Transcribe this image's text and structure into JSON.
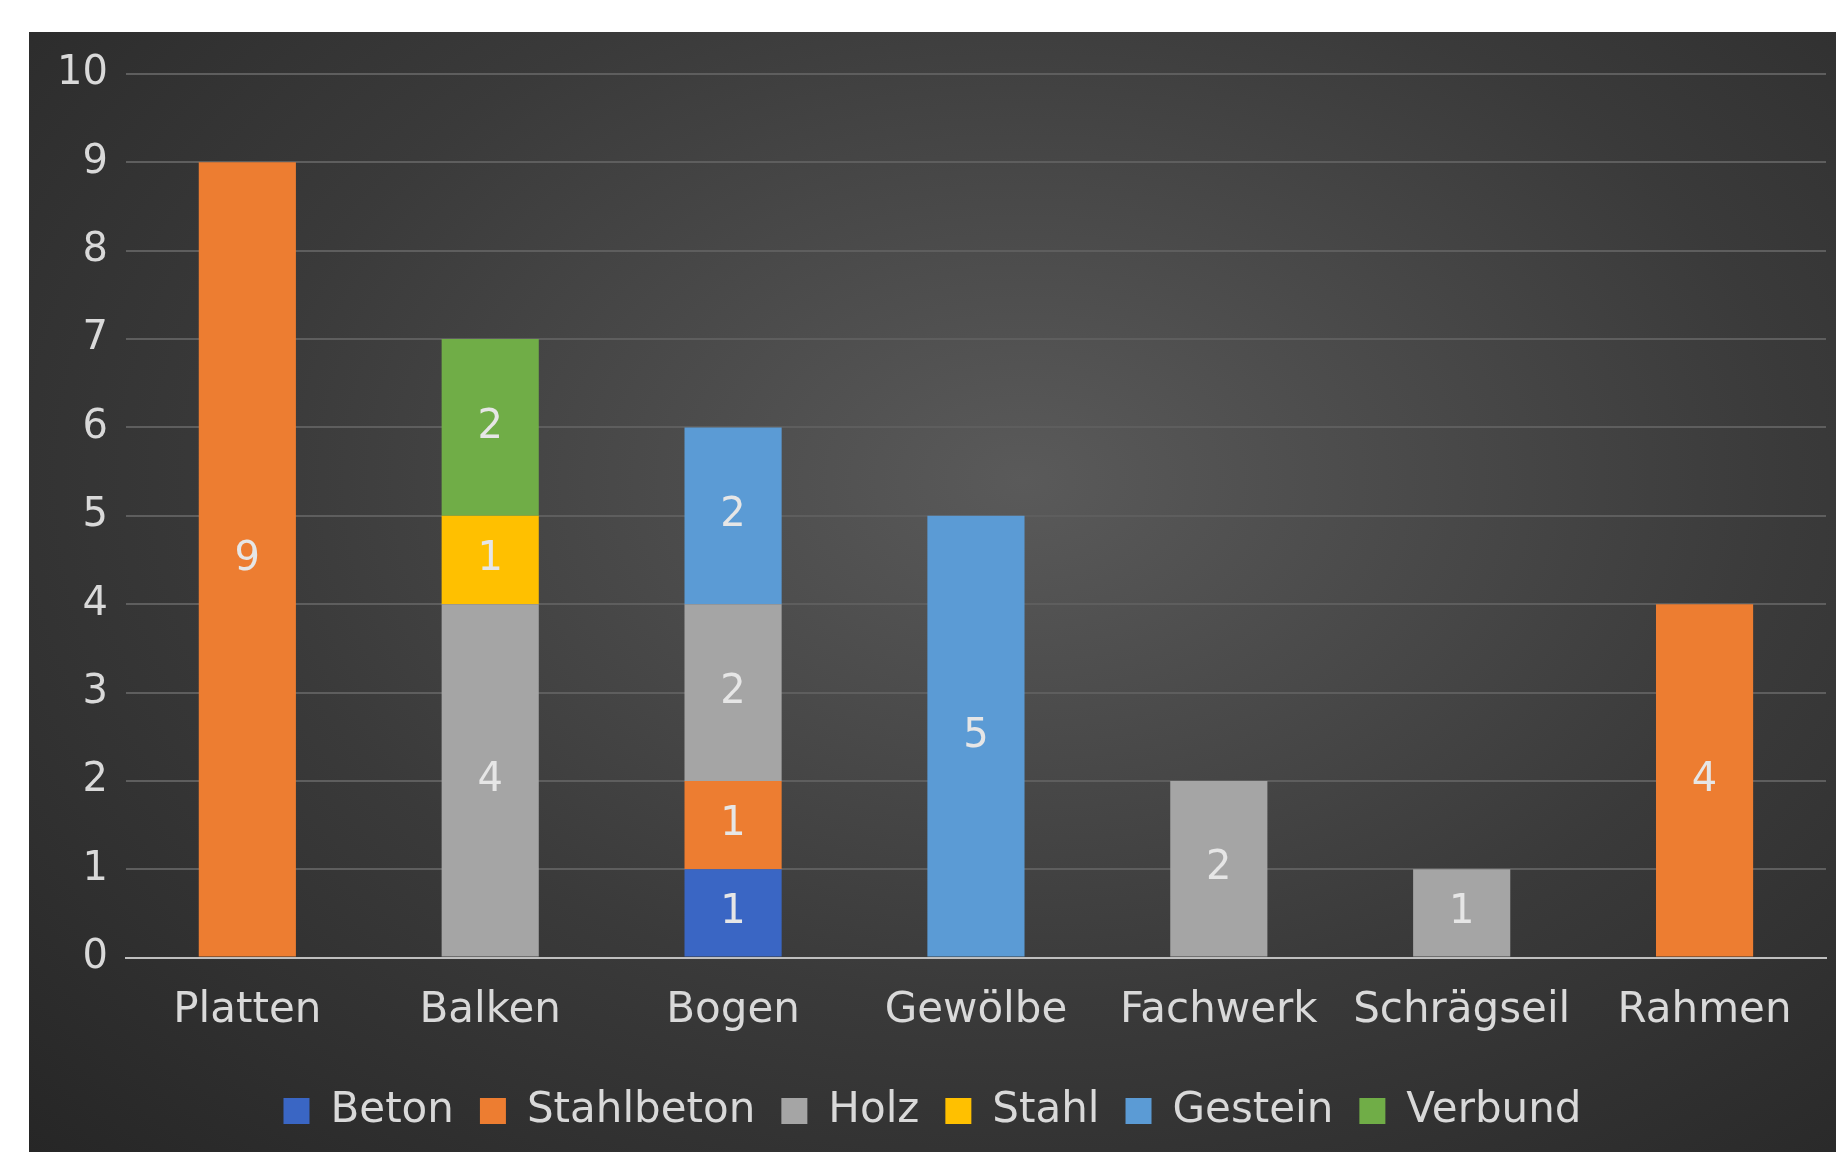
{
  "chart_data": {
    "type": "bar",
    "stacked": true,
    "categories": [
      "Platten",
      "Balken",
      "Bogen",
      "Gewölbe",
      "Fachwerk",
      "Schrägseil",
      "Rahmen"
    ],
    "series": [
      {
        "name": "Beton",
        "color": "#3a66c4",
        "values": [
          null,
          null,
          1,
          null,
          null,
          null,
          null
        ]
      },
      {
        "name": "Stahlbeton",
        "color": "#ed7d31",
        "values": [
          9,
          null,
          1,
          null,
          null,
          null,
          4
        ]
      },
      {
        "name": "Holz",
        "color": "#a5a5a5",
        "values": [
          null,
          4,
          2,
          null,
          2,
          1,
          null
        ]
      },
      {
        "name": "Stahl",
        "color": "#ffc000",
        "values": [
          null,
          1,
          null,
          null,
          null,
          null,
          null
        ]
      },
      {
        "name": "Gestein",
        "color": "#5b9bd5",
        "values": [
          null,
          null,
          2,
          5,
          null,
          null,
          null
        ]
      },
      {
        "name": "Verbund",
        "color": "#70ad47",
        "values": [
          null,
          2,
          null,
          null,
          null,
          null,
          null
        ]
      }
    ],
    "ylim": [
      0,
      10
    ],
    "yticks": [
      0,
      1,
      2,
      3,
      4,
      5,
      6,
      7,
      8,
      9,
      10
    ],
    "grid": "y",
    "legend": "bottom",
    "data_labels": true
  }
}
